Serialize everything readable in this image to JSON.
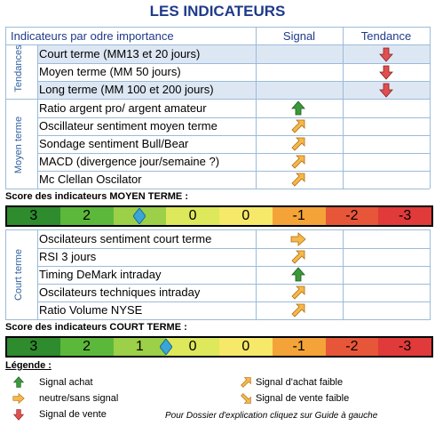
{
  "title": "LES INDICATEURS",
  "header": {
    "col1": "Indicateurs par odre importance",
    "col2": "Signal",
    "col3": "Tendance"
  },
  "sections": {
    "tendances": "Tendances",
    "moyen": "Moyen terme",
    "court": "Court terme"
  },
  "tendances_rows": [
    {
      "label": "Court terme (MM13 et 20 jours)",
      "tendance": "down"
    },
    {
      "label": "Moyen terme (MM 50 jours)",
      "tendance": "down"
    },
    {
      "label": "Long terme (MM 100 et 200 jours)",
      "tendance": "down"
    }
  ],
  "moyen_rows": [
    {
      "label": "Ratio argent pro/ argent amateur",
      "signal": "up"
    },
    {
      "label": "Oscillateur sentiment moyen terme",
      "signal": "up-weak"
    },
    {
      "label": "Sondage sentiment Bull/Bear",
      "signal": "up-weak"
    },
    {
      "label": "MACD (divergence jour/semaine ?)",
      "signal": "up-weak"
    },
    {
      "label": "Mc Clellan Oscilator",
      "signal": "up-weak"
    }
  ],
  "score_moyen_label": "Score des indicateurs MOYEN TERME :",
  "score_moyen": {
    "cells": [
      "3",
      "2",
      "",
      "0",
      "0",
      "-1",
      "-2",
      "-3"
    ],
    "marker_cell": 2
  },
  "court_rows": [
    {
      "label": "Oscilateurs sentiment court terme",
      "signal": "neutral"
    },
    {
      "label": "RSI 3 jours",
      "signal": "up-weak"
    },
    {
      "label": "Timing DeMark intraday",
      "signal": "up"
    },
    {
      "label": "Oscilateurs techniques intraday",
      "signal": "up-weak"
    },
    {
      "label": "Ratio Volume NYSE",
      "signal": "up-weak"
    }
  ],
  "score_court_label": "Score des indicateurs COURT TERME :",
  "score_court": {
    "cells": [
      "3",
      "2",
      "1",
      "0",
      "0",
      "-1",
      "-2",
      "-3"
    ],
    "marker_cell": 3
  },
  "legend": {
    "title": "Légende :",
    "achat": "Signal achat",
    "neutre": "neutre/sans signal",
    "vente": "Signal de vente",
    "achat_faible": "Signal d'achat faible",
    "vente_faible": "Signal de vente faible"
  },
  "footer": "Pour Dossier d'explication cliquez sur Guide à gauche",
  "colors": {
    "title": "#1f3a8a",
    "up": "#3a9a3a",
    "down": "#e05050",
    "weak": "#f0a030",
    "shade": "#dde7f3"
  }
}
